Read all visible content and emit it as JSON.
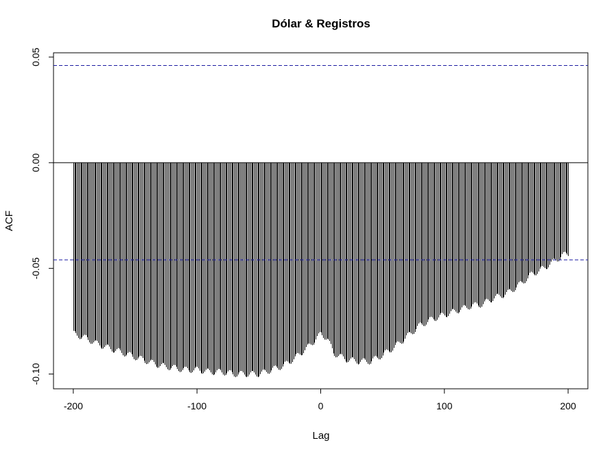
{
  "chart_data": {
    "type": "bar",
    "title": "Dólar & Registros",
    "xlabel": "Lag",
    "ylabel": "ACF",
    "xlim": [
      -216,
      216
    ],
    "ylim": [
      -0.107,
      0.052
    ],
    "xticks": [
      -200,
      -100,
      0,
      100,
      200
    ],
    "xtick_labels": [
      "-200",
      "-100",
      "0",
      "100",
      "200"
    ],
    "yticks": [
      -0.1,
      -0.05,
      0.0,
      0.05
    ],
    "ytick_labels": [
      "-0.10",
      "-0.05",
      "0.00",
      "0.05"
    ],
    "confidence_bound": 0.046,
    "lag_range": [
      -200,
      200
    ],
    "envelope": {
      "lag": [
        -200,
        -190,
        -180,
        -170,
        -160,
        -150,
        -140,
        -130,
        -120,
        -110,
        -100,
        -90,
        -80,
        -70,
        -60,
        -50,
        -40,
        -30,
        -20,
        -10,
        -5,
        0,
        5,
        10,
        20,
        30,
        40,
        50,
        60,
        70,
        80,
        90,
        100,
        110,
        120,
        130,
        140,
        150,
        160,
        170,
        180,
        185,
        190,
        195,
        200
      ],
      "acf": [
        -0.081,
        -0.083,
        -0.086,
        -0.088,
        -0.09,
        -0.092,
        -0.094,
        -0.096,
        -0.097,
        -0.098,
        -0.098,
        -0.099,
        -0.099,
        -0.1,
        -0.1,
        -0.1,
        -0.098,
        -0.096,
        -0.092,
        -0.087,
        -0.084,
        -0.081,
        -0.083,
        -0.09,
        -0.093,
        -0.094,
        -0.094,
        -0.091,
        -0.087,
        -0.082,
        -0.077,
        -0.074,
        -0.072,
        -0.07,
        -0.068,
        -0.067,
        -0.064,
        -0.062,
        -0.058,
        -0.053,
        -0.05,
        -0.048,
        -0.046,
        -0.044,
        -0.043
      ]
    },
    "ripple_amplitude": 0.0015,
    "ripple_period": 9,
    "grid": false,
    "legend": "none"
  }
}
